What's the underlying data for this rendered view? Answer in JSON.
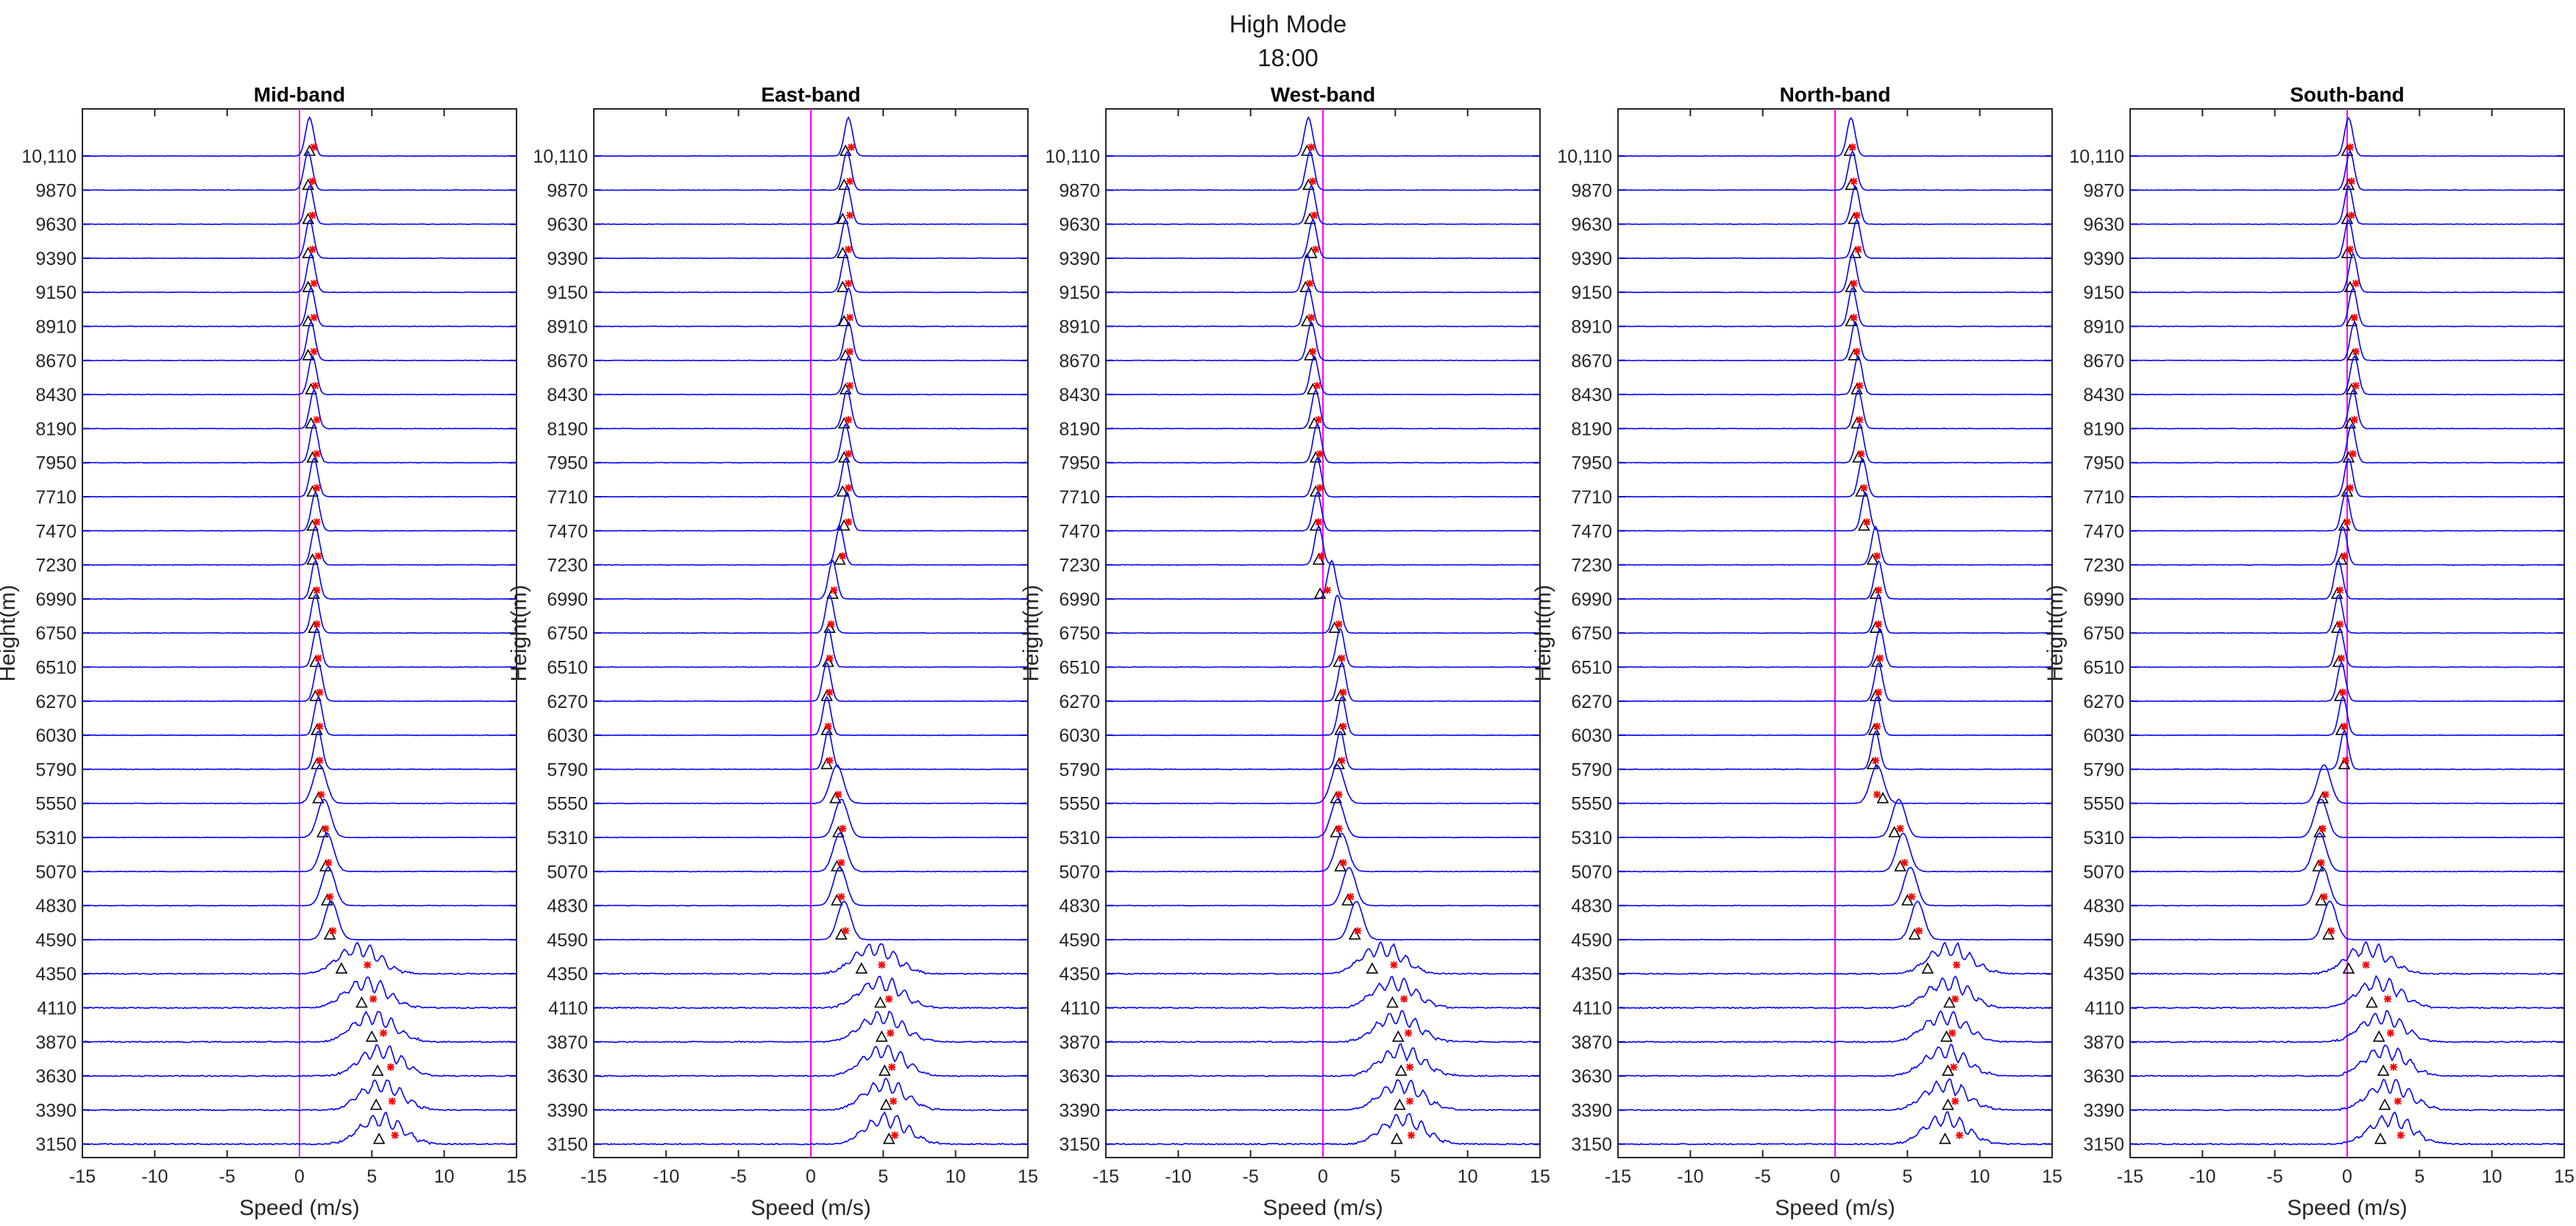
{
  "header": {
    "title": "High Mode",
    "subtitle": "18:00"
  },
  "chart_data": {
    "type": "line",
    "x_label": "Speed (m/s)",
    "y_label": "Height(m)",
    "xlim": [
      -15,
      15
    ],
    "x_ticks": [
      -15,
      -10,
      -5,
      0,
      5,
      10,
      15
    ],
    "heights": [
      "10,110",
      "9870",
      "9630",
      "9390",
      "9150",
      "8910",
      "8670",
      "8430",
      "8190",
      "7950",
      "7710",
      "7470",
      "7230",
      "6990",
      "6750",
      "6510",
      "6270",
      "6030",
      "5790",
      "5550",
      "5310",
      "5070",
      "4830",
      "4590",
      "4350",
      "4110",
      "3870",
      "3630",
      "3390",
      "3150"
    ],
    "zero_line_color": "#ff00ff",
    "spectrum_color": "#0000ff",
    "marker_triangle": "black-triangle",
    "marker_star": "red-star",
    "panels": [
      {
        "title": "Mid-band",
        "peak_speed": [
          0.7,
          0.6,
          0.7,
          0.7,
          0.8,
          0.8,
          0.8,
          0.9,
          1.0,
          1.0,
          1.0,
          1.1,
          1.1,
          1.1,
          1.1,
          1.2,
          1.3,
          1.3,
          1.3,
          1.4,
          1.7,
          1.9,
          2.0,
          2.2,
          4.5,
          5.0,
          5.5,
          6.0,
          6.0,
          6.0
        ],
        "triangle_speed": [
          0.7,
          0.6,
          0.6,
          0.6,
          0.6,
          0.6,
          0.6,
          0.8,
          0.8,
          0.9,
          0.9,
          0.9,
          0.9,
          1.0,
          1.0,
          1.1,
          1.1,
          1.2,
          1.2,
          1.3,
          1.6,
          1.8,
          1.9,
          2.1,
          2.9,
          4.3,
          5.0,
          5.4,
          5.3,
          5.5
        ],
        "star_speed": [
          1.0,
          0.9,
          0.9,
          0.9,
          1.0,
          1.0,
          1.0,
          1.1,
          1.2,
          1.2,
          1.2,
          1.2,
          1.3,
          1.2,
          1.2,
          1.3,
          1.4,
          1.4,
          1.4,
          1.5,
          1.8,
          2.0,
          2.1,
          2.3,
          4.7,
          5.1,
          5.8,
          6.3,
          6.4,
          6.6
        ]
      },
      {
        "title": "East-band",
        "peak_speed": [
          2.6,
          2.5,
          2.5,
          2.4,
          2.4,
          2.6,
          2.6,
          2.6,
          2.5,
          2.4,
          2.4,
          2.5,
          2.0,
          1.5,
          1.3,
          1.2,
          1.1,
          1.1,
          1.2,
          1.8,
          2.1,
          2.0,
          2.0,
          2.3,
          4.8,
          5.2,
          5.3,
          5.4,
          5.5,
          5.6
        ],
        "triangle_speed": [
          2.4,
          2.3,
          2.2,
          2.2,
          2.2,
          2.3,
          2.4,
          2.4,
          2.3,
          2.3,
          2.2,
          2.3,
          2.0,
          1.5,
          1.3,
          1.2,
          1.1,
          1.1,
          1.1,
          1.7,
          1.9,
          1.8,
          1.8,
          2.1,
          3.5,
          4.8,
          4.9,
          5.1,
          5.2,
          5.4
        ],
        "star_speed": [
          2.8,
          2.7,
          2.7,
          2.6,
          2.6,
          2.7,
          2.7,
          2.7,
          2.6,
          2.6,
          2.6,
          2.6,
          2.2,
          1.6,
          1.4,
          1.3,
          1.3,
          1.2,
          1.3,
          1.9,
          2.2,
          2.1,
          2.1,
          2.4,
          4.9,
          5.4,
          5.5,
          5.6,
          5.7,
          5.8
        ]
      },
      {
        "title": "West-band",
        "peak_speed": [
          -1.0,
          -0.9,
          -0.8,
          -0.7,
          -1.1,
          -1.0,
          -0.8,
          -0.6,
          -0.5,
          -0.4,
          -0.4,
          -0.4,
          -0.3,
          0.6,
          1.0,
          1.2,
          1.3,
          1.3,
          1.2,
          1.0,
          1.0,
          1.3,
          1.8,
          2.3,
          4.5,
          5.3,
          5.5,
          5.8,
          5.8,
          5.9
        ],
        "triangle_speed": [
          -1.1,
          -1.0,
          -0.9,
          -0.8,
          -1.2,
          -1.1,
          -0.9,
          -0.7,
          -0.6,
          -0.5,
          -0.5,
          -0.5,
          -0.3,
          -0.2,
          0.8,
          1.1,
          1.2,
          1.2,
          1.1,
          0.9,
          0.9,
          1.2,
          1.7,
          2.2,
          3.4,
          4.8,
          5.2,
          5.4,
          5.3,
          5.1
        ],
        "star_speed": [
          -0.8,
          -0.7,
          -0.6,
          -0.5,
          -0.9,
          -0.8,
          -0.7,
          -0.4,
          -0.3,
          -0.2,
          -0.2,
          -0.3,
          -0.1,
          0.3,
          1.1,
          1.3,
          1.4,
          1.4,
          1.3,
          1.1,
          1.1,
          1.4,
          1.9,
          2.4,
          4.9,
          5.6,
          5.9,
          6.0,
          6.0,
          6.1
        ]
      },
      {
        "title": "North-band",
        "peak_speed": [
          1.1,
          1.2,
          1.4,
          1.5,
          1.2,
          1.2,
          1.4,
          1.6,
          1.6,
          1.7,
          1.9,
          2.1,
          2.8,
          3.0,
          3.0,
          3.1,
          3.0,
          2.9,
          2.8,
          2.9,
          4.4,
          4.7,
          5.2,
          5.7,
          8.3,
          8.2,
          8.0,
          8.0,
          8.0,
          8.0
        ],
        "triangle_speed": [
          1.0,
          1.1,
          1.3,
          1.4,
          1.1,
          1.1,
          1.3,
          1.5,
          1.5,
          1.6,
          1.8,
          2.0,
          2.6,
          2.8,
          2.8,
          2.9,
          2.8,
          2.7,
          2.6,
          3.3,
          4.1,
          4.5,
          5.0,
          5.5,
          6.4,
          7.9,
          7.7,
          7.8,
          7.8,
          7.6
        ],
        "star_speed": [
          1.2,
          1.3,
          1.5,
          1.6,
          1.3,
          1.3,
          1.5,
          1.7,
          1.7,
          1.8,
          2.0,
          2.2,
          2.9,
          3.0,
          3.0,
          3.1,
          3.0,
          2.9,
          2.8,
          2.9,
          4.5,
          4.8,
          5.3,
          5.8,
          8.4,
          8.3,
          8.1,
          8.2,
          8.3,
          8.6
        ]
      },
      {
        "title": "South-band",
        "peak_speed": [
          0.1,
          0.2,
          0.1,
          0.1,
          0.4,
          0.4,
          0.5,
          0.5,
          0.4,
          0.3,
          0.1,
          -0.1,
          -0.3,
          -0.6,
          -0.6,
          -0.5,
          -0.4,
          -0.3,
          -0.2,
          -1.6,
          -1.8,
          -1.9,
          -1.7,
          -1.2,
          1.8,
          2.6,
          2.8,
          3.0,
          3.3,
          3.4
        ],
        "triangle_speed": [
          0.0,
          0.1,
          0.0,
          0.0,
          0.2,
          0.3,
          0.4,
          0.3,
          0.2,
          0.1,
          0.0,
          -0.2,
          -0.4,
          -0.7,
          -0.7,
          -0.6,
          -0.5,
          -0.4,
          -0.2,
          -1.7,
          -1.9,
          -2.0,
          -1.8,
          -1.3,
          0.1,
          1.7,
          2.2,
          2.5,
          2.6,
          2.3
        ],
        "star_speed": [
          0.2,
          0.3,
          0.3,
          0.2,
          0.6,
          0.5,
          0.6,
          0.6,
          0.5,
          0.4,
          0.2,
          0.0,
          -0.2,
          -0.5,
          -0.5,
          -0.4,
          -0.3,
          -0.2,
          -0.1,
          -1.5,
          -1.7,
          -1.8,
          -1.6,
          -1.1,
          1.3,
          2.8,
          3.0,
          3.2,
          3.5,
          3.7
        ]
      }
    ]
  }
}
